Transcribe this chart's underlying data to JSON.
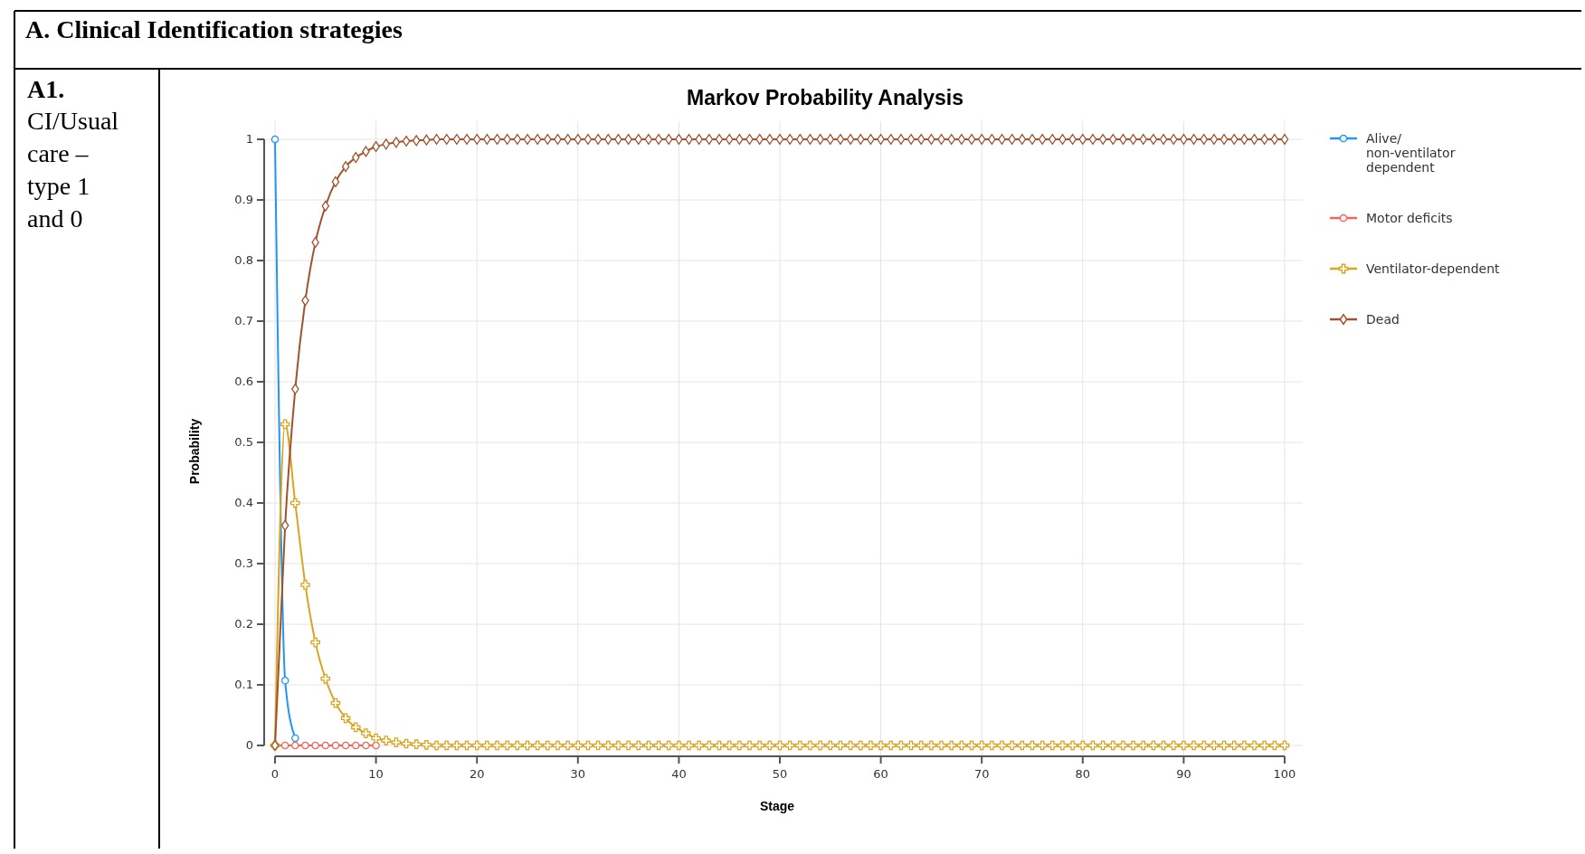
{
  "chart_data": {
    "type": "line",
    "title": "Markov Probability Analysis",
    "xlabel": "Stage",
    "ylabel": "Probability",
    "annotations": [
      "A.   Clinical Identification strategies",
      "A1.",
      "CI/Usual care – type 1 and 0"
    ],
    "x": [
      0,
      1,
      2,
      3,
      4,
      5,
      6,
      7,
      8,
      9,
      10,
      11,
      12,
      13,
      14,
      15,
      16,
      17,
      18,
      19,
      20,
      21,
      22,
      23,
      24,
      25,
      26,
      27,
      28,
      29,
      30,
      31,
      32,
      33,
      34,
      35,
      36,
      37,
      38,
      39,
      40,
      41,
      42,
      43,
      44,
      45,
      46,
      47,
      48,
      49,
      50,
      51,
      52,
      53,
      54,
      55,
      56,
      57,
      58,
      59,
      60,
      61,
      62,
      63,
      64,
      65,
      66,
      67,
      68,
      69,
      70,
      71,
      72,
      73,
      74,
      75,
      76,
      77,
      78,
      79,
      80,
      81,
      82,
      83,
      84,
      85,
      86,
      87,
      88,
      89,
      90,
      91,
      92,
      93,
      94,
      95,
      96,
      97,
      98,
      99,
      100
    ],
    "xlim": [
      0,
      100
    ],
    "xticks": [
      0,
      10,
      20,
      30,
      40,
      50,
      60,
      70,
      80,
      90,
      100
    ],
    "ylim": [
      0,
      1
    ],
    "yticks": [
      0,
      0.1,
      0.2,
      0.3,
      0.4,
      0.5,
      0.6,
      0.7,
      0.8,
      0.9,
      1
    ],
    "grid": true,
    "legend": "top right",
    "series": [
      {
        "name": "Alive/non-ventilator dependent",
        "color": "#2196f3",
        "marker": "circle",
        "values": [
          1,
          0.107,
          0.012,
          null,
          null,
          null,
          null,
          null,
          null,
          null,
          null,
          null,
          null,
          null,
          null,
          null,
          null,
          null,
          null,
          null,
          null,
          null,
          null,
          null,
          null,
          null,
          null,
          null,
          null,
          null,
          null,
          null,
          null,
          null,
          null,
          null,
          null,
          null,
          null,
          null,
          null,
          null,
          null,
          null,
          null,
          null,
          null,
          null,
          null,
          null,
          null,
          null,
          null,
          null,
          null,
          null,
          null,
          null,
          null,
          null,
          null,
          null,
          null,
          null,
          null,
          null,
          null,
          null,
          null,
          null,
          null,
          null,
          null,
          null,
          null,
          null,
          null,
          null,
          null,
          null,
          null,
          null,
          null,
          null,
          null,
          null,
          null,
          null,
          null,
          null,
          null,
          null,
          null,
          null,
          null,
          null,
          null,
          null,
          null,
          null,
          null
        ]
      },
      {
        "name": "Motor deficits",
        "color": "#f4645a",
        "marker": "circle",
        "values": [
          0,
          0,
          0,
          0,
          0,
          0,
          0,
          0,
          0,
          0,
          0,
          null,
          null,
          null,
          null,
          null,
          null,
          null,
          null,
          null,
          null,
          null,
          null,
          null,
          null,
          null,
          null,
          null,
          null,
          null,
          null,
          null,
          null,
          null,
          null,
          null,
          null,
          null,
          null,
          null,
          null,
          null,
          null,
          null,
          null,
          null,
          null,
          null,
          null,
          null,
          null,
          null,
          null,
          null,
          null,
          null,
          null,
          null,
          null,
          null,
          null,
          null,
          null,
          null,
          null,
          null,
          null,
          null,
          null,
          null,
          null,
          null,
          null,
          null,
          null,
          null,
          null,
          null,
          null,
          null,
          null,
          null,
          null,
          null,
          null,
          null,
          null,
          null,
          null,
          null,
          null,
          null,
          null,
          null,
          null,
          null,
          null,
          null,
          null,
          null,
          null
        ]
      },
      {
        "name": "Ventilator-dependent",
        "color": "#d9a520",
        "marker": "cross",
        "values": [
          0,
          0.53,
          0.4,
          0.265,
          0.17,
          0.11,
          0.07,
          0.045,
          0.03,
          0.02,
          0.012,
          0.008,
          0.005,
          0.003,
          0.002,
          0.001,
          0,
          0,
          0,
          0,
          0,
          0,
          0,
          0,
          0,
          0,
          0,
          0,
          0,
          0,
          0,
          0,
          0,
          0,
          0,
          0,
          0,
          0,
          0,
          0,
          0,
          0,
          0,
          0,
          0,
          0,
          0,
          0,
          0,
          0,
          0,
          0,
          0,
          0,
          0,
          0,
          0,
          0,
          0,
          0,
          0,
          0,
          0,
          0,
          0,
          0,
          0,
          0,
          0,
          0,
          0,
          0,
          0,
          0,
          0,
          0,
          0,
          0,
          0,
          0,
          0,
          0,
          0,
          0,
          0,
          0,
          0,
          0,
          0,
          0,
          0,
          0,
          0,
          0,
          0,
          0,
          0,
          0,
          0,
          0,
          0
        ]
      },
      {
        "name": "Dead",
        "color": "#a0522d",
        "marker": "diamond",
        "values": [
          0,
          0.363,
          0.588,
          0.734,
          0.83,
          0.89,
          0.93,
          0.955,
          0.97,
          0.98,
          0.988,
          0.992,
          0.995,
          0.997,
          0.998,
          0.999,
          1,
          1,
          1,
          1,
          1,
          1,
          1,
          1,
          1,
          1,
          1,
          1,
          1,
          1,
          1,
          1,
          1,
          1,
          1,
          1,
          1,
          1,
          1,
          1,
          1,
          1,
          1,
          1,
          1,
          1,
          1,
          1,
          1,
          1,
          1,
          1,
          1,
          1,
          1,
          1,
          1,
          1,
          1,
          1,
          1,
          1,
          1,
          1,
          1,
          1,
          1,
          1,
          1,
          1,
          1,
          1,
          1,
          1,
          1,
          1,
          1,
          1,
          1,
          1,
          1,
          1,
          1,
          1,
          1,
          1,
          1,
          1,
          1,
          1,
          1,
          1,
          1,
          1,
          1,
          1,
          1,
          1,
          1,
          1,
          1
        ]
      }
    ]
  }
}
